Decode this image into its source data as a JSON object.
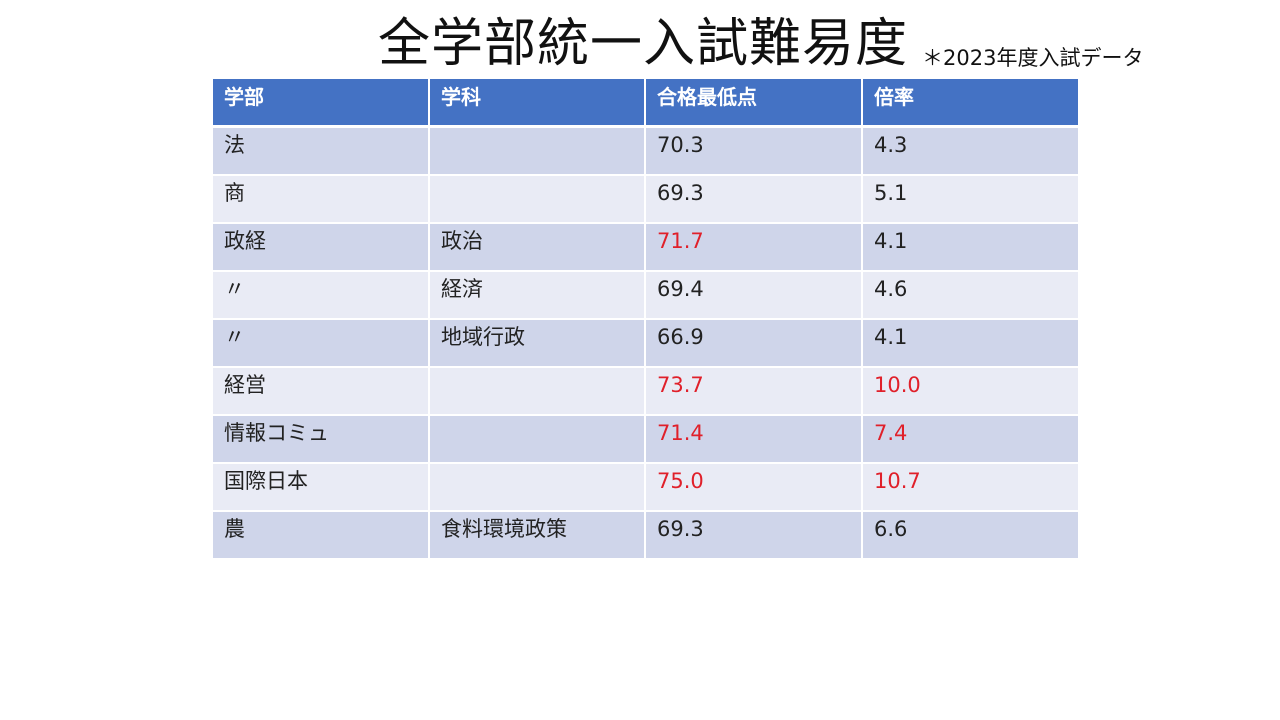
{
  "title": "全学部統一入試難易度",
  "note": "＊2023年度入試データ",
  "colors": {
    "header_bg": "#4472c4",
    "row_odd_bg": "#cfd5ea",
    "row_even_bg": "#e9ebf5",
    "highlight_text": "#e0202a"
  },
  "table": {
    "headers": [
      "学部",
      "学科",
      "合格最低点",
      "倍率"
    ],
    "rows": [
      {
        "faculty": "法",
        "department": "",
        "min_score": "70.3",
        "ratio": "4.3",
        "score_highlight": false,
        "ratio_highlight": false
      },
      {
        "faculty": "商",
        "department": "",
        "min_score": "69.3",
        "ratio": "5.1",
        "score_highlight": false,
        "ratio_highlight": false
      },
      {
        "faculty": "政経",
        "department": "政治",
        "min_score": "71.7",
        "ratio": "4.1",
        "score_highlight": true,
        "ratio_highlight": false
      },
      {
        "faculty": "〃",
        "department": "経済",
        "min_score": "69.4",
        "ratio": "4.6",
        "score_highlight": false,
        "ratio_highlight": false
      },
      {
        "faculty": "〃",
        "department": "地域行政",
        "min_score": "66.9",
        "ratio": "4.1",
        "score_highlight": false,
        "ratio_highlight": false
      },
      {
        "faculty": "経営",
        "department": "",
        "min_score": "73.7",
        "ratio": "10.0",
        "score_highlight": true,
        "ratio_highlight": true
      },
      {
        "faculty": "情報コミュ",
        "department": "",
        "min_score": "71.4",
        "ratio": "7.4",
        "score_highlight": true,
        "ratio_highlight": true
      },
      {
        "faculty": "国際日本",
        "department": "",
        "min_score": "75.0",
        "ratio": "10.7",
        "score_highlight": true,
        "ratio_highlight": true
      },
      {
        "faculty": "農",
        "department": "食料環境政策",
        "min_score": "69.3",
        "ratio": "6.6",
        "score_highlight": false,
        "ratio_highlight": false
      }
    ]
  }
}
